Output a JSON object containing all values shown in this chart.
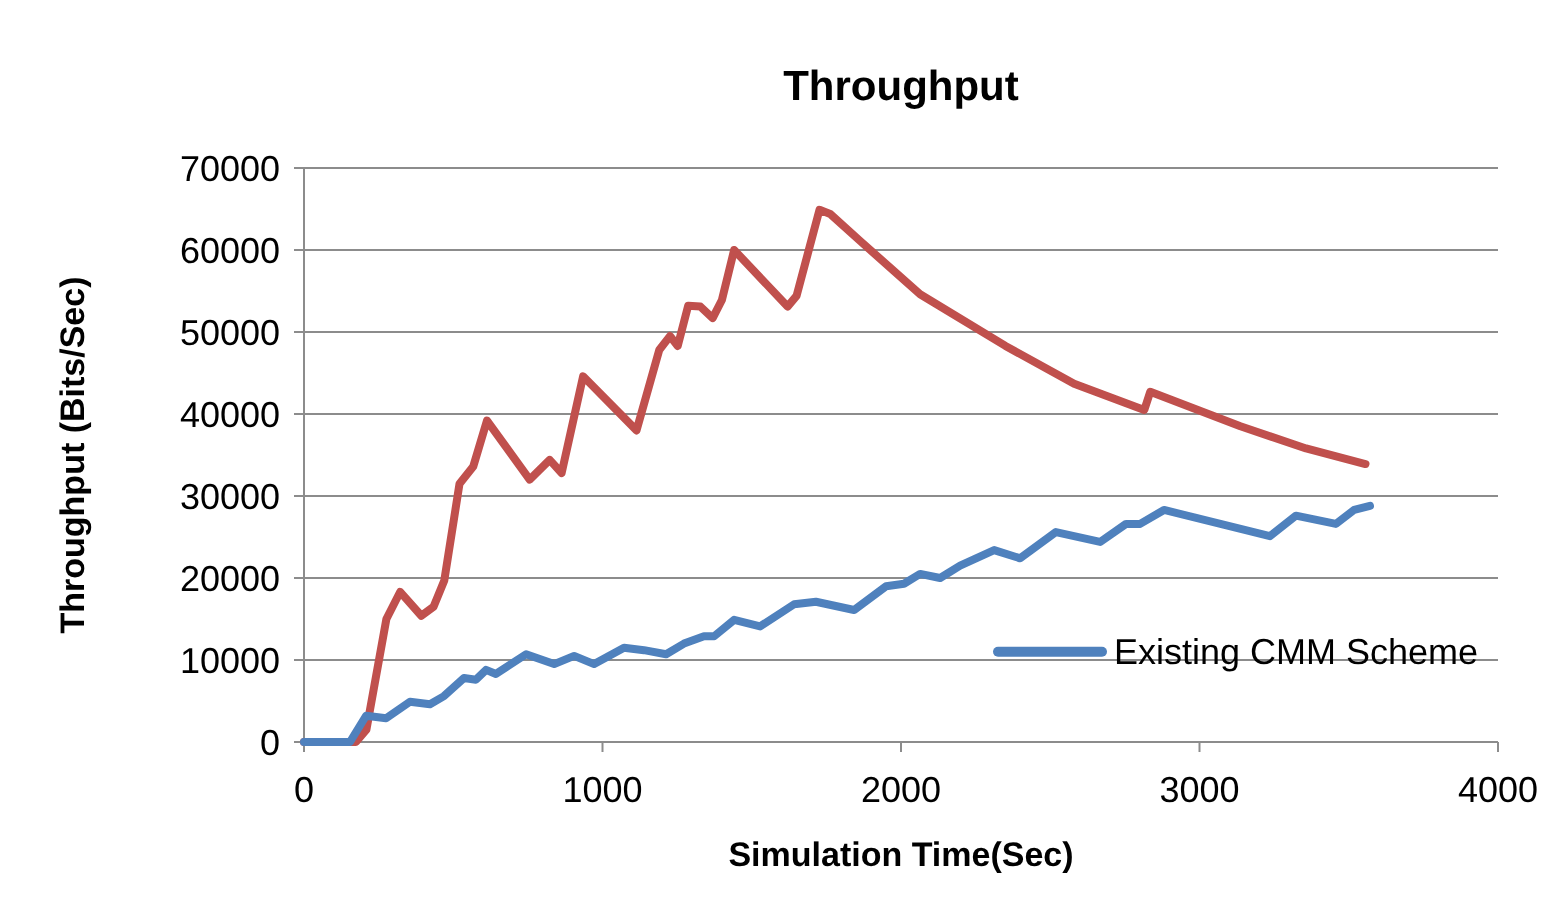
{
  "chart_data": {
    "type": "line",
    "title": "Throughput",
    "xlabel": "Simulation Time(Sec)",
    "ylabel": "Throughput (Bits/Sec)",
    "xlim": [
      0,
      4000
    ],
    "xticks": [
      0,
      1000,
      2000,
      3000,
      4000
    ],
    "ylim": [
      0,
      70000
    ],
    "yticks": [
      0,
      10000,
      20000,
      30000,
      40000,
      50000,
      60000,
      70000
    ],
    "grid": "y",
    "legend": "bottom right",
    "marker": "none",
    "line_style": "solid",
    "series": [
      {
        "color": "#c0504d",
        "x": [
          0,
          174,
          209,
          276,
          322,
          393,
          434,
          470,
          521,
          567,
          613,
          756,
          823,
          863,
          935,
          1114,
          1190,
          1226,
          1252,
          1287,
          1328,
          1369,
          1400,
          1441,
          1620,
          1650,
          1727,
          1763,
          1860,
          2064,
          2350,
          2580,
          2815,
          2835,
          3137,
          3357,
          3556
        ],
        "values": [
          0,
          0,
          1500,
          15000,
          18300,
          15400,
          16500,
          19700,
          31500,
          33600,
          39200,
          32000,
          34400,
          32800,
          44600,
          38000,
          47800,
          49500,
          48300,
          53200,
          53100,
          51700,
          53900,
          60000,
          53100,
          54400,
          64900,
          64400,
          61200,
          54600,
          48300,
          43700,
          40500,
          42700,
          38500,
          35800,
          33900
        ]
      },
      {
        "name": "Existing CMM Scheme",
        "color": "#4f81bd",
        "x": [
          0,
          154,
          208,
          275,
          355,
          422,
          469,
          536,
          576,
          610,
          643,
          744,
          838,
          905,
          972,
          1072,
          1139,
          1213,
          1273,
          1340,
          1374,
          1441,
          1528,
          1642,
          1715,
          1843,
          1950,
          2010,
          2064,
          2131,
          2198,
          2312,
          2399,
          2519,
          2667,
          2754,
          2801,
          2881,
          3236,
          3323,
          3457,
          3518,
          3571
        ],
        "values": [
          0,
          0,
          3200,
          2900,
          4900,
          4600,
          5600,
          7800,
          7600,
          8800,
          8300,
          10700,
          9500,
          10500,
          9500,
          11500,
          11200,
          10700,
          12000,
          12900,
          12900,
          14900,
          14100,
          16800,
          17100,
          16100,
          19000,
          19300,
          20500,
          20000,
          21500,
          23400,
          22400,
          25600,
          24400,
          26600,
          26600,
          28300,
          25100,
          27600,
          26600,
          28300,
          28800
        ]
      }
    ]
  }
}
